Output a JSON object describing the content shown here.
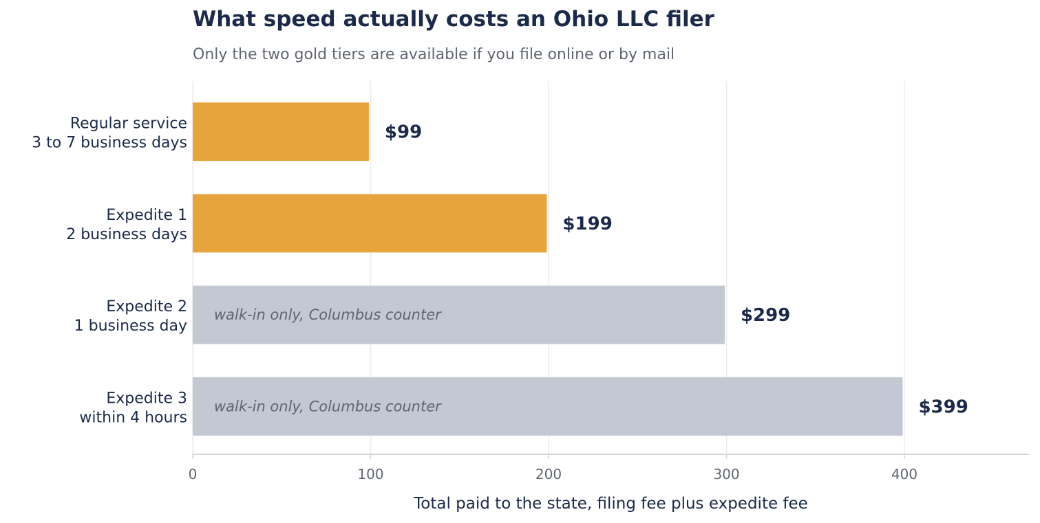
{
  "chart_data": {
    "type": "bar",
    "orientation": "horizontal",
    "title": "What speed actually costs an Ohio LLC filer",
    "subtitle": "Only the two gold tiers are available if you file online or by mail",
    "xlabel": "Total paid to the state, filing fee plus expedite fee",
    "ylabel": "",
    "xlim": [
      0,
      470
    ],
    "xticks": [
      0,
      100,
      200,
      300,
      400
    ],
    "grid": "vertical",
    "categories": [
      {
        "line1": "Regular service",
        "line2": "3 to 7 business days"
      },
      {
        "line1": "Expedite 1",
        "line2": "2 business days"
      },
      {
        "line1": "Expedite 2",
        "line2": "1 business day"
      },
      {
        "line1": "Expedite 3",
        "line2": "within 4 hours"
      }
    ],
    "values": [
      99,
      199,
      299,
      399
    ],
    "value_labels": [
      "$99",
      "$199",
      "$299",
      "$399"
    ],
    "bar_notes": [
      "",
      "",
      "walk-in only, Columbus counter",
      "walk-in only, Columbus counter"
    ],
    "bar_colors": [
      "#e8a43c",
      "#e8a43c",
      "#c3c8d3",
      "#c3c8d3"
    ],
    "colors": {
      "text_dark": "#1b2a4a",
      "text_muted": "#5f6670",
      "grid": "#ececec",
      "axis": "#d6d6d6",
      "gold": "#e8a43c",
      "gray": "#c3c8d3"
    }
  }
}
